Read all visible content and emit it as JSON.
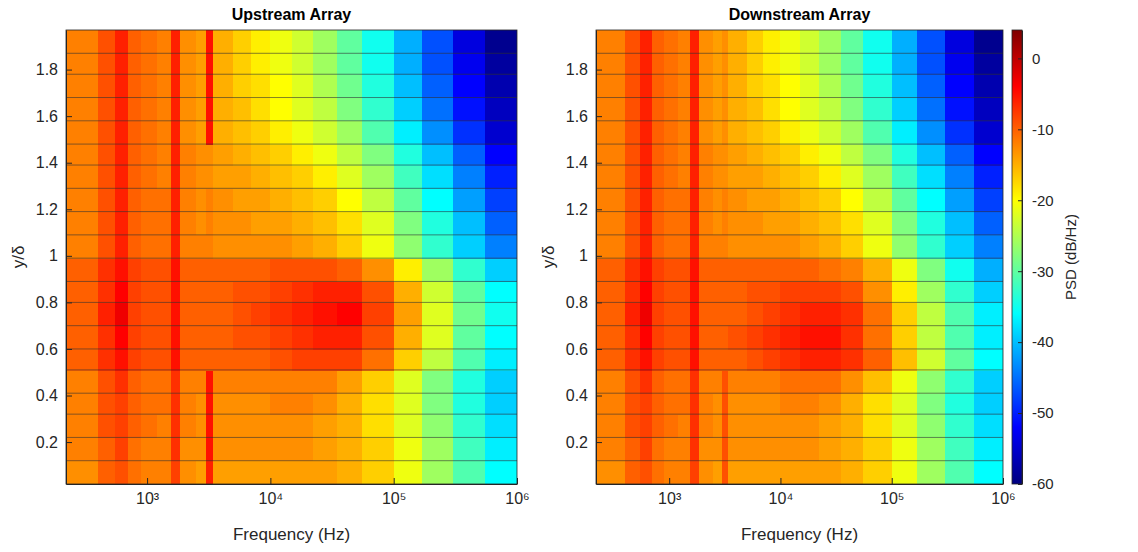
{
  "chart_data": [
    {
      "type": "heatmap",
      "title": "Upstream Array",
      "x_label": "Frequency (Hz)",
      "y_label": "y/δ",
      "log": "x",
      "xlim": [
        220,
        1000000
      ],
      "ylim": [
        0.02,
        1.97
      ],
      "xticks": [
        {
          "value": 1000,
          "label": "10³"
        },
        {
          "value": 10000,
          "label": "10⁴"
        },
        {
          "value": 100000,
          "label": "10⁵"
        },
        {
          "value": 1000000,
          "label": "10⁶"
        }
      ],
      "yticks": [
        0.2,
        0.4,
        0.6,
        0.8,
        1,
        1.2,
        1.4,
        1.6,
        1.8
      ],
      "x_edges": [
        220,
        400,
        550,
        700,
        900,
        1200,
        1550,
        1850,
        2500,
        3000,
        3400,
        5000,
        7000,
        10000,
        15000,
        22000,
        35000,
        55000,
        100000,
        170000,
        300000,
        550000,
        1000000
      ],
      "y_edges": [
        0.02,
        0.12,
        0.22,
        0.32,
        0.41,
        0.51,
        0.6,
        0.7,
        0.8,
        0.89,
        0.99,
        1.09,
        1.19,
        1.29,
        1.39,
        1.48,
        1.58,
        1.68,
        1.78,
        1.87,
        1.97
      ],
      "cells": [
        [
          -13,
          -10,
          -9,
          -11,
          -12,
          -12,
          -8,
          -13,
          -14,
          -6,
          -14,
          -14,
          -14,
          -14,
          -14,
          -14,
          -15,
          -17,
          -21,
          -26,
          -31,
          -36
        ],
        [
          -12,
          -10,
          -8,
          -11,
          -12,
          -12,
          -7,
          -13,
          -13,
          -5,
          -13,
          -13,
          -13,
          -13,
          -13,
          -14,
          -15,
          -17,
          -21,
          -26,
          -32,
          -37
        ],
        [
          -12,
          -9,
          -8,
          -10,
          -11,
          -12,
          -7,
          -12,
          -13,
          -5,
          -13,
          -13,
          -13,
          -13,
          -13,
          -14,
          -15,
          -18,
          -22,
          -27,
          -33,
          -38
        ],
        [
          -12,
          -9,
          -8,
          -10,
          -11,
          -11,
          -7,
          -12,
          -13,
          -5,
          -13,
          -13,
          -13,
          -12,
          -12,
          -13,
          -15,
          -18,
          -22,
          -28,
          -34,
          -39
        ],
        [
          -12,
          -9,
          -7,
          -10,
          -11,
          -11,
          -7,
          -12,
          -12,
          -5,
          -12,
          -12,
          -12,
          -12,
          -12,
          -12,
          -14,
          -17,
          -22,
          -28,
          -34,
          -39
        ],
        [
          -10,
          -7,
          -5,
          -8,
          -9,
          -9,
          -5,
          -10,
          -10,
          -10,
          -10,
          -10,
          -10,
          -9,
          -8,
          -8,
          -8,
          -11,
          -17,
          -24,
          -31,
          -37
        ],
        [
          -10,
          -7,
          -4,
          -8,
          -9,
          -9,
          -5,
          -10,
          -10,
          -10,
          -10,
          -9,
          -9,
          -8,
          -7,
          -6,
          -6,
          -9,
          -15,
          -22,
          -30,
          -36
        ],
        [
          -10,
          -6,
          -3,
          -8,
          -9,
          -9,
          -5,
          -10,
          -10,
          -10,
          -10,
          -9,
          -8,
          -7,
          -6,
          -5,
          -4,
          -8,
          -14,
          -22,
          -29,
          -35
        ],
        [
          -10,
          -7,
          -4,
          -8,
          -9,
          -9,
          -5,
          -10,
          -10,
          -10,
          -10,
          -9,
          -9,
          -8,
          -7,
          -6,
          -6,
          -9,
          -15,
          -23,
          -30,
          -36
        ],
        [
          -10,
          -7,
          -5,
          -8,
          -9,
          -9,
          -5,
          -10,
          -10,
          -10,
          -10,
          -10,
          -10,
          -9,
          -9,
          -9,
          -10,
          -13,
          -19,
          -26,
          -33,
          -39
        ],
        [
          -12,
          -9,
          -6,
          -10,
          -11,
          -11,
          -6,
          -12,
          -12,
          -12,
          -13,
          -13,
          -13,
          -13,
          -14,
          -15,
          -17,
          -21,
          -27,
          -33,
          -39,
          -44
        ],
        [
          -12,
          -9,
          -6,
          -10,
          -11,
          -11,
          -6,
          -12,
          -13,
          -12,
          -13,
          -13,
          -14,
          -14,
          -15,
          -16,
          -18,
          -22,
          -28,
          -34,
          -40,
          -46
        ],
        [
          -12,
          -9,
          -6,
          -10,
          -11,
          -11,
          -6,
          -12,
          -13,
          -12,
          -13,
          -14,
          -14,
          -15,
          -16,
          -17,
          -20,
          -24,
          -30,
          -36,
          -42,
          -48
        ],
        [
          -12,
          -9,
          -6,
          -10,
          -11,
          -12,
          -6,
          -12,
          -13,
          -13,
          -14,
          -14,
          -15,
          -16,
          -17,
          -19,
          -22,
          -26,
          -32,
          -38,
          -44,
          -50
        ],
        [
          -12,
          -9,
          -6,
          -10,
          -11,
          -12,
          -6,
          -12,
          -13,
          -13,
          -14,
          -15,
          -16,
          -17,
          -19,
          -21,
          -24,
          -28,
          -34,
          -40,
          -46,
          -52
        ],
        [
          -12,
          -9,
          -6,
          -10,
          -11,
          -12,
          -6,
          -13,
          -14,
          -5,
          -15,
          -16,
          -17,
          -19,
          -21,
          -23,
          -26,
          -31,
          -37,
          -43,
          -49,
          -55
        ],
        [
          -12,
          -9,
          -6,
          -10,
          -11,
          -12,
          -6,
          -13,
          -14,
          -5,
          -15,
          -16,
          -18,
          -20,
          -22,
          -24,
          -28,
          -33,
          -39,
          -45,
          -51,
          -56
        ],
        [
          -12,
          -9,
          -6,
          -10,
          -11,
          -12,
          -6,
          -13,
          -14,
          -5,
          -15,
          -17,
          -18,
          -20,
          -22,
          -25,
          -29,
          -34,
          -40,
          -46,
          -52,
          -57
        ],
        [
          -12,
          -9,
          -6,
          -10,
          -11,
          -12,
          -6,
          -13,
          -14,
          -5,
          -15,
          -17,
          -19,
          -21,
          -23,
          -26,
          -30,
          -35,
          -41,
          -47,
          -53,
          -58
        ],
        [
          -12,
          -9,
          -6,
          -10,
          -11,
          -12,
          -6,
          -13,
          -14,
          -5,
          -15,
          -17,
          -19,
          -21,
          -23,
          -26,
          -30,
          -35,
          -41,
          -47,
          -54,
          -59
        ]
      ]
    },
    {
      "type": "heatmap",
      "title": "Downstream Array",
      "x_label": "Frequency (Hz)",
      "y_label": "y/δ",
      "log": "x",
      "xlim": [
        220,
        1000000
      ],
      "ylim": [
        0.02,
        1.97
      ],
      "xticks": [
        {
          "value": 1000,
          "label": "10³"
        },
        {
          "value": 10000,
          "label": "10⁴"
        },
        {
          "value": 100000,
          "label": "10⁵"
        },
        {
          "value": 1000000,
          "label": "10⁶"
        }
      ],
      "yticks": [
        0.2,
        0.4,
        0.6,
        0.8,
        1,
        1.2,
        1.4,
        1.6,
        1.8
      ],
      "x_edges": [
        220,
        400,
        550,
        700,
        900,
        1200,
        1550,
        1850,
        2500,
        3000,
        3400,
        5000,
        7000,
        10000,
        15000,
        22000,
        35000,
        55000,
        100000,
        170000,
        300000,
        550000,
        1000000
      ],
      "y_edges": [
        0.02,
        0.12,
        0.22,
        0.32,
        0.41,
        0.51,
        0.6,
        0.7,
        0.8,
        0.89,
        0.99,
        1.09,
        1.19,
        1.29,
        1.39,
        1.48,
        1.58,
        1.68,
        1.78,
        1.87,
        1.97
      ],
      "cells": [
        [
          -13,
          -10,
          -9,
          -11,
          -12,
          -12,
          -8,
          -13,
          -14,
          -9,
          -14,
          -14,
          -14,
          -14,
          -14,
          -14,
          -15,
          -17,
          -21,
          -26,
          -31,
          -36
        ],
        [
          -12,
          -10,
          -8,
          -11,
          -12,
          -12,
          -7,
          -13,
          -13,
          -9,
          -13,
          -13,
          -13,
          -13,
          -13,
          -14,
          -15,
          -17,
          -21,
          -26,
          -32,
          -37
        ],
        [
          -12,
          -9,
          -8,
          -10,
          -11,
          -12,
          -7,
          -12,
          -13,
          -9,
          -13,
          -13,
          -13,
          -13,
          -13,
          -14,
          -15,
          -18,
          -22,
          -27,
          -33,
          -38
        ],
        [
          -12,
          -9,
          -8,
          -10,
          -11,
          -11,
          -7,
          -12,
          -13,
          -9,
          -13,
          -13,
          -13,
          -12,
          -12,
          -13,
          -15,
          -18,
          -22,
          -28,
          -34,
          -39
        ],
        [
          -12,
          -9,
          -7,
          -10,
          -11,
          -11,
          -7,
          -12,
          -12,
          -9,
          -12,
          -12,
          -12,
          -11,
          -11,
          -11,
          -13,
          -16,
          -21,
          -27,
          -33,
          -39
        ],
        [
          -10,
          -7,
          -5,
          -8,
          -9,
          -9,
          -5,
          -10,
          -10,
          -10,
          -10,
          -9,
          -8,
          -7,
          -6,
          -6,
          -7,
          -10,
          -16,
          -23,
          -30,
          -36
        ],
        [
          -10,
          -7,
          -4,
          -8,
          -9,
          -9,
          -5,
          -10,
          -10,
          -10,
          -9,
          -8,
          -7,
          -6,
          -5,
          -5,
          -7,
          -11,
          -17,
          -24,
          -31,
          -37
        ],
        [
          -10,
          -6,
          -3,
          -8,
          -9,
          -9,
          -5,
          -10,
          -10,
          -10,
          -10,
          -9,
          -8,
          -7,
          -6,
          -6,
          -7,
          -11,
          -17,
          -24,
          -31,
          -37
        ],
        [
          -10,
          -7,
          -4,
          -8,
          -9,
          -9,
          -5,
          -10,
          -10,
          -10,
          -10,
          -9,
          -9,
          -8,
          -8,
          -8,
          -9,
          -13,
          -19,
          -26,
          -33,
          -39
        ],
        [
          -10,
          -7,
          -5,
          -8,
          -9,
          -9,
          -5,
          -10,
          -10,
          -10,
          -10,
          -10,
          -10,
          -10,
          -10,
          -11,
          -12,
          -15,
          -21,
          -28,
          -35,
          -41
        ],
        [
          -12,
          -9,
          -6,
          -10,
          -11,
          -11,
          -6,
          -12,
          -12,
          -12,
          -13,
          -13,
          -13,
          -13,
          -14,
          -15,
          -17,
          -21,
          -27,
          -33,
          -39,
          -44
        ],
        [
          -12,
          -9,
          -6,
          -10,
          -11,
          -11,
          -6,
          -12,
          -13,
          -12,
          -13,
          -13,
          -14,
          -14,
          -15,
          -16,
          -18,
          -22,
          -28,
          -34,
          -40,
          -46
        ],
        [
          -12,
          -9,
          -6,
          -10,
          -11,
          -11,
          -6,
          -12,
          -13,
          -12,
          -13,
          -14,
          -14,
          -15,
          -16,
          -17,
          -20,
          -24,
          -30,
          -36,
          -42,
          -48
        ],
        [
          -12,
          -9,
          -6,
          -10,
          -11,
          -12,
          -6,
          -12,
          -13,
          -13,
          -14,
          -14,
          -15,
          -16,
          -17,
          -19,
          -22,
          -26,
          -32,
          -38,
          -44,
          -50
        ],
        [
          -12,
          -9,
          -6,
          -10,
          -11,
          -12,
          -6,
          -12,
          -13,
          -13,
          -14,
          -15,
          -16,
          -17,
          -19,
          -21,
          -24,
          -28,
          -34,
          -40,
          -46,
          -52
        ],
        [
          -12,
          -9,
          -6,
          -10,
          -11,
          -12,
          -6,
          -13,
          -14,
          -13,
          -15,
          -16,
          -17,
          -19,
          -21,
          -23,
          -26,
          -31,
          -37,
          -43,
          -49,
          -55
        ],
        [
          -12,
          -9,
          -6,
          -10,
          -11,
          -12,
          -6,
          -13,
          -14,
          -13,
          -15,
          -16,
          -18,
          -20,
          -22,
          -24,
          -28,
          -33,
          -39,
          -45,
          -51,
          -56
        ],
        [
          -12,
          -9,
          -6,
          -10,
          -11,
          -12,
          -6,
          -13,
          -14,
          -13,
          -15,
          -17,
          -18,
          -20,
          -22,
          -25,
          -29,
          -34,
          -40,
          -46,
          -52,
          -57
        ],
        [
          -12,
          -9,
          -6,
          -10,
          -11,
          -12,
          -6,
          -13,
          -14,
          -13,
          -15,
          -17,
          -19,
          -21,
          -23,
          -26,
          -30,
          -35,
          -41,
          -47,
          -53,
          -58
        ],
        [
          -12,
          -9,
          -6,
          -10,
          -11,
          -12,
          -6,
          -13,
          -14,
          -13,
          -15,
          -17,
          -19,
          -21,
          -23,
          -26,
          -30,
          -35,
          -41,
          -47,
          -54,
          -59
        ]
      ],
      "colorbar": {
        "label": "PSD (dB/Hz)",
        "range": [
          -60,
          4
        ],
        "ticks": [
          -60,
          -50,
          -40,
          -30,
          -20,
          -10,
          0
        ]
      }
    }
  ]
}
